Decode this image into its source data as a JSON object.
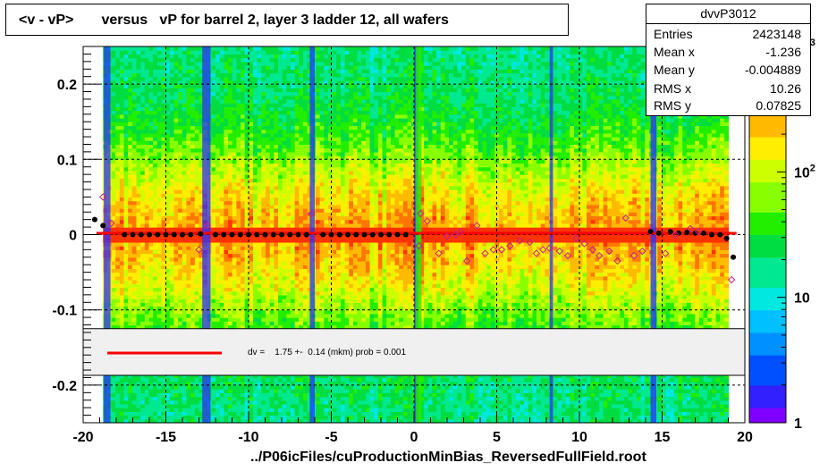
{
  "chart_data": {
    "type": "heatmap",
    "title": "<v - vP>       versus   vP for barrel 2, layer 3 ladder 12, all wafers",
    "xlabel": "../P06icFiles/cuProductionMinBias_ReversedFullField.root",
    "ylabel": "",
    "xlim": [
      -20,
      20
    ],
    "ylim": [
      -0.25,
      0.25
    ],
    "x_ticks": [
      -20,
      -15,
      -10,
      -5,
      0,
      5,
      10,
      15,
      20
    ],
    "y_ticks": [
      -0.2,
      -0.1,
      0,
      0.1,
      0.2
    ],
    "grid": true,
    "colorbar": {
      "scale": "log",
      "min": 1,
      "max": 1000,
      "ticks": [
        "1",
        "10",
        "10^2",
        "10^3"
      ]
    },
    "stats": {
      "name": "dvvP3012",
      "rows": [
        {
          "label": "Entries",
          "value": "2423148"
        },
        {
          "label": "Mean x",
          "value": "-1.236"
        },
        {
          "label": "Mean y",
          "value": "-0.004889"
        },
        {
          "label": "RMS x",
          "value": "10.26"
        },
        {
          "label": "RMS y",
          "value": "0.07825"
        }
      ]
    },
    "fit": {
      "text": "dv =    1.75 +-  0.14 (mkm) prob = 0.001",
      "value": 0.00175,
      "color": "#ff0000"
    },
    "series": [
      {
        "marker": "filled-circle",
        "color": "#000000",
        "points": [
          [
            -19.3,
            0.02
          ],
          [
            -18.8,
            0.012
          ],
          [
            -17.5,
            0.0
          ],
          [
            -17.0,
            0.0
          ],
          [
            -16.5,
            0.0
          ],
          [
            -16.0,
            0.0
          ],
          [
            -15.5,
            0.0
          ],
          [
            -15.0,
            0.0
          ],
          [
            -14.5,
            0.0
          ],
          [
            -14.0,
            0.0
          ],
          [
            -13.5,
            0.0
          ],
          [
            -12.9,
            0.001
          ],
          [
            -12.0,
            0.0
          ],
          [
            -11.5,
            0.0
          ],
          [
            -11.0,
            0.0
          ],
          [
            -10.5,
            0.0
          ],
          [
            -10.0,
            0.0
          ],
          [
            -9.5,
            0.0
          ],
          [
            -9.0,
            0.0
          ],
          [
            -8.5,
            0.0
          ],
          [
            -8.0,
            0.0
          ],
          [
            -7.5,
            0.0
          ],
          [
            -7.0,
            0.0
          ],
          [
            -6.5,
            0.0
          ],
          [
            -5.5,
            0.0
          ],
          [
            -5.0,
            0.0
          ],
          [
            -4.5,
            0.0
          ],
          [
            -4.0,
            0.0
          ],
          [
            -3.5,
            0.0
          ],
          [
            -3.0,
            0.0
          ],
          [
            -2.5,
            0.0
          ],
          [
            -2.0,
            0.0
          ],
          [
            -1.5,
            0.0
          ],
          [
            -1.0,
            0.0
          ],
          [
            -0.5,
            0.0
          ],
          [
            14.3,
            0.004
          ],
          [
            14.8,
            0.002
          ],
          [
            15.5,
            0.004
          ],
          [
            16.0,
            0.002
          ],
          [
            16.5,
            0.003
          ],
          [
            17.0,
            0.002
          ],
          [
            17.5,
            0.002
          ],
          [
            18.0,
            0.0
          ],
          [
            18.5,
            0.0
          ],
          [
            18.9,
            -0.005
          ],
          [
            19.3,
            -0.03
          ]
        ]
      },
      {
        "marker": "open-diamond",
        "color": "#c02090",
        "points": [
          [
            -18.8,
            0.05
          ],
          [
            -18.3,
            0.015
          ],
          [
            -13.0,
            -0.02
          ],
          [
            -12.5,
            0.012
          ],
          [
            -6.2,
            0.028
          ],
          [
            0.3,
            -0.015
          ],
          [
            0.4,
            0.028
          ],
          [
            0.8,
            0.018
          ],
          [
            1.5,
            -0.025
          ],
          [
            2.0,
            -0.002
          ],
          [
            2.5,
            0.0
          ],
          [
            2.8,
            0.004
          ],
          [
            3.2,
            -0.035
          ],
          [
            3.8,
            0.012
          ],
          [
            4.3,
            -0.025
          ],
          [
            4.8,
            -0.02
          ],
          [
            5.3,
            -0.02
          ],
          [
            5.8,
            -0.015
          ],
          [
            6.4,
            -0.008
          ],
          [
            7.0,
            -0.01
          ],
          [
            7.4,
            -0.025
          ],
          [
            7.8,
            -0.02
          ],
          [
            8.2,
            -0.018
          ],
          [
            8.8,
            -0.022
          ],
          [
            9.3,
            -0.028
          ],
          [
            9.8,
            -0.005
          ],
          [
            10.3,
            -0.012
          ],
          [
            10.8,
            -0.02
          ],
          [
            11.2,
            -0.028
          ],
          [
            11.8,
            -0.022
          ],
          [
            12.3,
            -0.035
          ],
          [
            12.8,
            0.022
          ],
          [
            13.3,
            -0.028
          ],
          [
            13.8,
            -0.022
          ],
          [
            15.2,
            -0.025
          ],
          [
            15.8,
            0.0
          ],
          [
            16.7,
            0.008
          ],
          [
            17.2,
            0.004
          ],
          [
            19.2,
            -0.06
          ]
        ]
      }
    ]
  }
}
